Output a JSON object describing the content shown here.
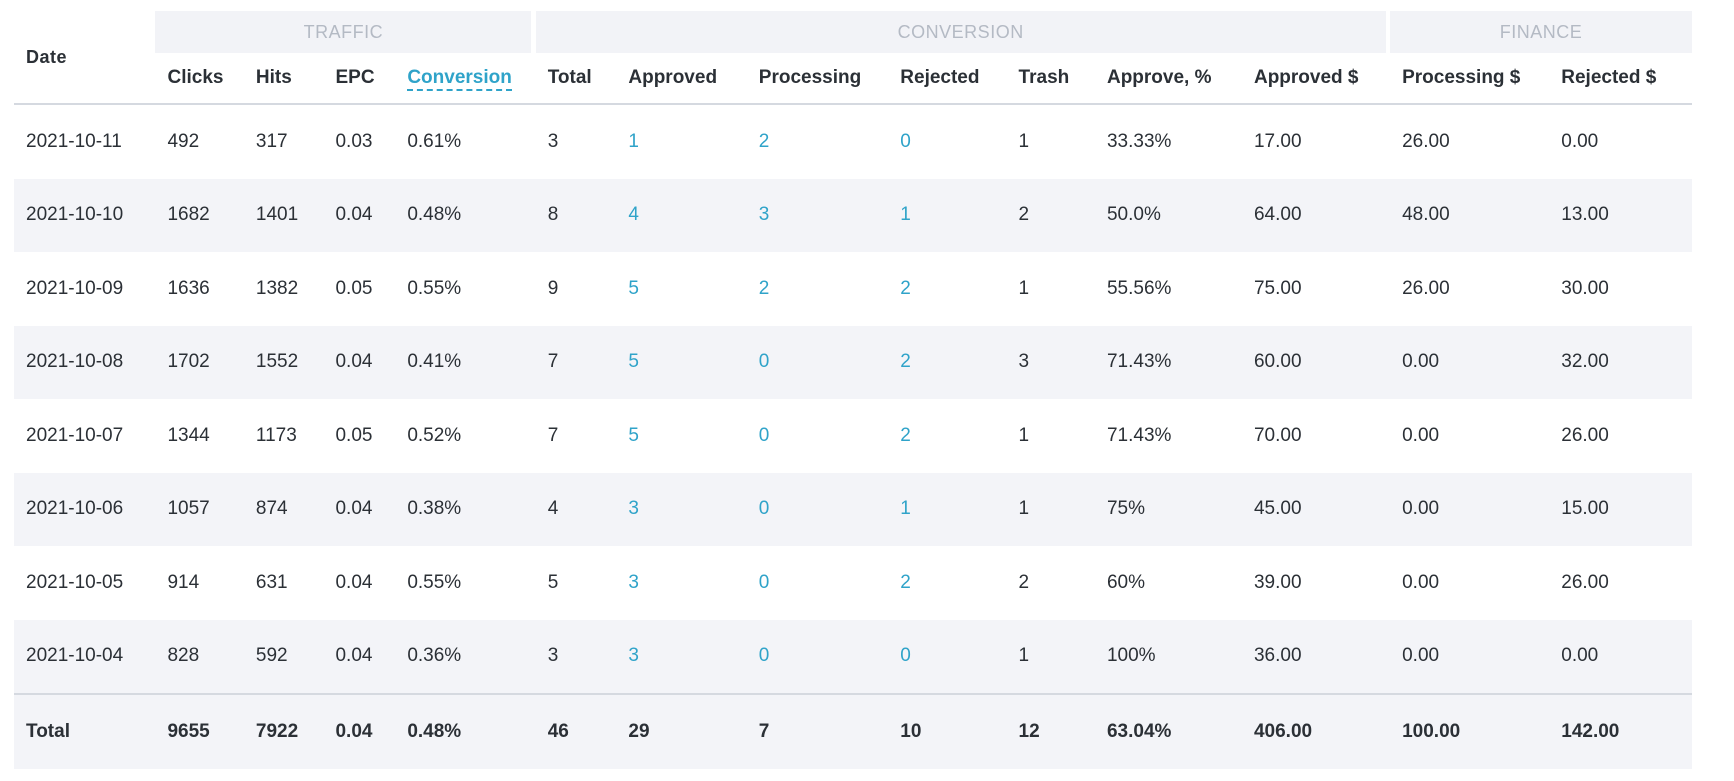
{
  "groups": {
    "traffic": "TRAFFIC",
    "conversion": "CONVERSION",
    "finance": "FINANCE"
  },
  "columns": {
    "date": "Date",
    "clicks": "Clicks",
    "hits": "Hits",
    "epc": "EPC",
    "conversion": "Conversion",
    "total": "Total",
    "approved": "Approved",
    "processing": "Processing",
    "rejected": "Rejected",
    "trash": "Trash",
    "approve_pct": "Approve, %",
    "approved_usd": "Approved $",
    "processing_usd": "Processing $",
    "rejected_usd": "Rejected $"
  },
  "rows": [
    {
      "date": "2021-10-11",
      "clicks": "492",
      "hits": "317",
      "epc": "0.03",
      "conversion": "0.61%",
      "total": "3",
      "approved": "1",
      "processing": "2",
      "rejected": "0",
      "trash": "1",
      "approve_pct": "33.33%",
      "approved_usd": "17.00",
      "processing_usd": "26.00",
      "rejected_usd": "0.00"
    },
    {
      "date": "2021-10-10",
      "clicks": "1682",
      "hits": "1401",
      "epc": "0.04",
      "conversion": "0.48%",
      "total": "8",
      "approved": "4",
      "processing": "3",
      "rejected": "1",
      "trash": "2",
      "approve_pct": "50.0%",
      "approved_usd": "64.00",
      "processing_usd": "48.00",
      "rejected_usd": "13.00"
    },
    {
      "date": "2021-10-09",
      "clicks": "1636",
      "hits": "1382",
      "epc": "0.05",
      "conversion": "0.55%",
      "total": "9",
      "approved": "5",
      "processing": "2",
      "rejected": "2",
      "trash": "1",
      "approve_pct": "55.56%",
      "approved_usd": "75.00",
      "processing_usd": "26.00",
      "rejected_usd": "30.00"
    },
    {
      "date": "2021-10-08",
      "clicks": "1702",
      "hits": "1552",
      "epc": "0.04",
      "conversion": "0.41%",
      "total": "7",
      "approved": "5",
      "processing": "0",
      "rejected": "2",
      "trash": "3",
      "approve_pct": "71.43%",
      "approved_usd": "60.00",
      "processing_usd": "0.00",
      "rejected_usd": "32.00"
    },
    {
      "date": "2021-10-07",
      "clicks": "1344",
      "hits": "1173",
      "epc": "0.05",
      "conversion": "0.52%",
      "total": "7",
      "approved": "5",
      "processing": "0",
      "rejected": "2",
      "trash": "1",
      "approve_pct": "71.43%",
      "approved_usd": "70.00",
      "processing_usd": "0.00",
      "rejected_usd": "26.00"
    },
    {
      "date": "2021-10-06",
      "clicks": "1057",
      "hits": "874",
      "epc": "0.04",
      "conversion": "0.38%",
      "total": "4",
      "approved": "3",
      "processing": "0",
      "rejected": "1",
      "trash": "1",
      "approve_pct": "75%",
      "approved_usd": "45.00",
      "processing_usd": "0.00",
      "rejected_usd": "15.00"
    },
    {
      "date": "2021-10-05",
      "clicks": "914",
      "hits": "631",
      "epc": "0.04",
      "conversion": "0.55%",
      "total": "5",
      "approved": "3",
      "processing": "0",
      "rejected": "2",
      "trash": "2",
      "approve_pct": "60%",
      "approved_usd": "39.00",
      "processing_usd": "0.00",
      "rejected_usd": "26.00"
    },
    {
      "date": "2021-10-04",
      "clicks": "828",
      "hits": "592",
      "epc": "0.04",
      "conversion": "0.36%",
      "total": "3",
      "approved": "3",
      "processing": "0",
      "rejected": "0",
      "trash": "1",
      "approve_pct": "100%",
      "approved_usd": "36.00",
      "processing_usd": "0.00",
      "rejected_usd": "0.00"
    }
  ],
  "totals": {
    "label": "Total",
    "clicks": "9655",
    "hits": "7922",
    "epc": "0.04",
    "conversion": "0.48%",
    "total": "46",
    "approved": "29",
    "processing": "7",
    "rejected": "10",
    "trash": "12",
    "approve_pct": "63.04%",
    "approved_usd": "406.00",
    "processing_usd": "100.00",
    "rejected_usd": "142.00"
  },
  "colors": {
    "link": "#2fa3c9",
    "group_header_bg": "#f2f3f7",
    "group_header_text": "#b4bac4",
    "zebra_bg": "#f3f4f8"
  }
}
